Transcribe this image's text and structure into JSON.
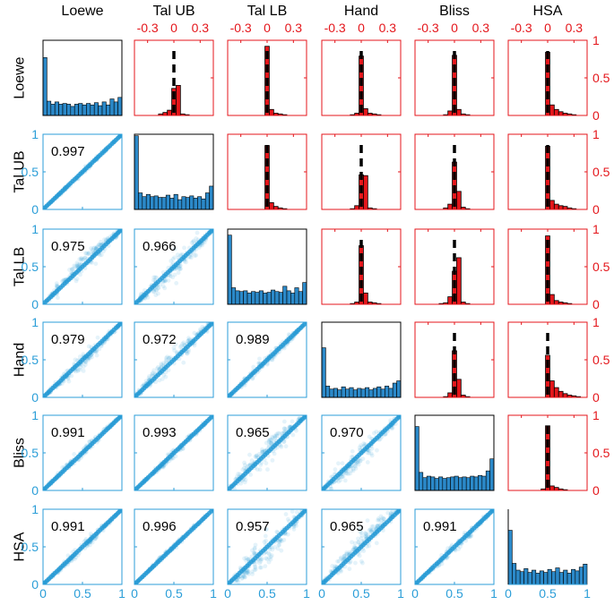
{
  "chart_data": {
    "type": "scatter-matrix",
    "methods": [
      "Loewe",
      "Tal UB",
      "Tal LB",
      "Hand",
      "Bliss",
      "HSA"
    ],
    "colors": {
      "scatter": "#2b9ed8",
      "hist": "#2b89c9",
      "diff": "#e4161b",
      "frame_lower": "#2b9ed8",
      "frame_upper": "#e4161b",
      "frame_diag": "#000000"
    },
    "lower_triangle": {
      "xlim": [
        0,
        1
      ],
      "ylim": [
        0,
        1
      ],
      "x_ticks": [
        0,
        0.5,
        1
      ],
      "x_tick_labels": [
        "0",
        "0.5",
        "1"
      ],
      "y_ticks": [
        0,
        0.5,
        1
      ],
      "y_tick_labels": [
        "0",
        "0.5",
        "1"
      ],
      "correlations": [
        {
          "row": 1,
          "col": 0,
          "value": "0.997"
        },
        {
          "row": 2,
          "col": 0,
          "value": "0.975"
        },
        {
          "row": 2,
          "col": 1,
          "value": "0.966"
        },
        {
          "row": 3,
          "col": 0,
          "value": "0.979"
        },
        {
          "row": 3,
          "col": 1,
          "value": "0.972"
        },
        {
          "row": 3,
          "col": 2,
          "value": "0.989"
        },
        {
          "row": 4,
          "col": 0,
          "value": "0.991"
        },
        {
          "row": 4,
          "col": 1,
          "value": "0.993"
        },
        {
          "row": 4,
          "col": 2,
          "value": "0.965"
        },
        {
          "row": 4,
          "col": 3,
          "value": "0.970"
        },
        {
          "row": 5,
          "col": 0,
          "value": "0.991"
        },
        {
          "row": 5,
          "col": 1,
          "value": "0.996"
        },
        {
          "row": 5,
          "col": 2,
          "value": "0.957"
        },
        {
          "row": 5,
          "col": 3,
          "value": "0.965"
        },
        {
          "row": 5,
          "col": 4,
          "value": "0.991"
        }
      ]
    },
    "upper_triangle": {
      "xlim": [
        -0.45,
        0.45
      ],
      "ylim": [
        0,
        1
      ],
      "x_ticks": [
        -0.3,
        0,
        0.3
      ],
      "x_tick_labels": [
        "-0.3",
        "0",
        "0.3"
      ],
      "y_ticks": [
        0,
        0.5,
        1
      ],
      "y_tick_labels": [
        "0",
        "0.5",
        "1"
      ],
      "bin_centers": [
        -0.35,
        -0.3,
        -0.25,
        -0.2,
        -0.15,
        -0.1,
        -0.05,
        0,
        0.05,
        0.1,
        0.15,
        0.2,
        0.25,
        0.3,
        0.35
      ],
      "histograms": [
        {
          "row": 0,
          "col": 1,
          "values": [
            0,
            0,
            0,
            0,
            0.02,
            0.04,
            0.07,
            0.36,
            0.4,
            0.02,
            0.01,
            0,
            0,
            0,
            0
          ]
        },
        {
          "row": 0,
          "col": 2,
          "values": [
            0,
            0,
            0,
            0,
            0,
            0,
            0,
            0.92,
            0.08,
            0.03,
            0.02,
            0.01,
            0,
            0,
            0
          ]
        },
        {
          "row": 0,
          "col": 3,
          "values": [
            0,
            0,
            0,
            0,
            0,
            0.01,
            0.03,
            0.79,
            0.09,
            0.03,
            0.02,
            0.01,
            0,
            0,
            0
          ]
        },
        {
          "row": 0,
          "col": 4,
          "values": [
            0,
            0,
            0,
            0,
            0,
            0.01,
            0.06,
            0.8,
            0.08,
            0.02,
            0.01,
            0,
            0,
            0,
            0
          ]
        },
        {
          "row": 0,
          "col": 5,
          "values": [
            0,
            0,
            0,
            0,
            0,
            0,
            0,
            0.84,
            0.14,
            0.08,
            0.05,
            0.03,
            0.02,
            0.01,
            0
          ]
        },
        {
          "row": 1,
          "col": 2,
          "values": [
            0,
            0,
            0,
            0,
            0,
            0,
            0,
            0.85,
            0.09,
            0.04,
            0.02,
            0.01,
            0,
            0,
            0
          ]
        },
        {
          "row": 1,
          "col": 3,
          "values": [
            0,
            0,
            0,
            0,
            0,
            0.01,
            0.05,
            0.46,
            0.45,
            0.02,
            0.01,
            0,
            0,
            0,
            0
          ]
        },
        {
          "row": 1,
          "col": 4,
          "values": [
            0,
            0,
            0,
            0,
            0,
            0.02,
            0.07,
            0.63,
            0.24,
            0.03,
            0.01,
            0,
            0,
            0,
            0
          ]
        },
        {
          "row": 1,
          "col": 5,
          "values": [
            0,
            0,
            0,
            0,
            0,
            0,
            0,
            0.84,
            0.12,
            0.07,
            0.05,
            0.04,
            0.02,
            0.01,
            0
          ]
        },
        {
          "row": 2,
          "col": 3,
          "values": [
            0,
            0,
            0,
            0,
            0,
            0.01,
            0.03,
            0.78,
            0.15,
            0.03,
            0.02,
            0.01,
            0,
            0,
            0
          ]
        },
        {
          "row": 2,
          "col": 4,
          "values": [
            0,
            0,
            0,
            0,
            0.01,
            0.02,
            0.1,
            0.44,
            0.62,
            0.03,
            0.01,
            0,
            0,
            0,
            0
          ]
        },
        {
          "row": 2,
          "col": 5,
          "values": [
            0,
            0,
            0,
            0,
            0,
            0,
            0,
            0.91,
            0.13,
            0.05,
            0.03,
            0.02,
            0.01,
            0,
            0
          ]
        },
        {
          "row": 3,
          "col": 4,
          "values": [
            0,
            0,
            0,
            0,
            0,
            0.01,
            0.06,
            0.62,
            0.24,
            0.03,
            0.01,
            0,
            0,
            0,
            0
          ]
        },
        {
          "row": 3,
          "col": 5,
          "values": [
            0,
            0,
            0,
            0,
            0,
            0,
            0,
            0.56,
            0.22,
            0.13,
            0.08,
            0.05,
            0.03,
            0.02,
            0.01
          ]
        },
        {
          "row": 4,
          "col": 5,
          "values": [
            0,
            0,
            0,
            0,
            0,
            0,
            0.02,
            0.86,
            0.06,
            0.04,
            0.02,
            0.01,
            0,
            0,
            0
          ]
        }
      ]
    },
    "diagonal": {
      "xlim": [
        0,
        1
      ],
      "histograms": [
        {
          "index": 0,
          "values": [
            0.77,
            0.19,
            0.15,
            0.18,
            0.15,
            0.16,
            0.15,
            0.12,
            0.15,
            0.16,
            0.14,
            0.16,
            0.14,
            0.17,
            0.13,
            0.18,
            0.14,
            0.22,
            0.18,
            0.24
          ]
        },
        {
          "index": 1,
          "values": [
            0.98,
            0.22,
            0.17,
            0.2,
            0.17,
            0.18,
            0.16,
            0.16,
            0.19,
            0.15,
            0.2,
            0.13,
            0.17,
            0.16,
            0.18,
            0.15,
            0.17,
            0.14,
            0.22,
            0.31
          ]
        },
        {
          "index": 2,
          "values": [
            0.92,
            0.22,
            0.18,
            0.17,
            0.18,
            0.15,
            0.17,
            0.16,
            0.18,
            0.15,
            0.16,
            0.19,
            0.17,
            0.16,
            0.24,
            0.18,
            0.15,
            0.22,
            0.17,
            0.29
          ]
        },
        {
          "index": 3,
          "values": [
            0.66,
            0.15,
            0.11,
            0.12,
            0.1,
            0.14,
            0.11,
            0.13,
            0.1,
            0.12,
            0.11,
            0.13,
            0.1,
            0.12,
            0.14,
            0.11,
            0.15,
            0.12,
            0.19,
            0.22
          ]
        },
        {
          "index": 4,
          "values": [
            0.85,
            0.24,
            0.17,
            0.19,
            0.18,
            0.16,
            0.18,
            0.16,
            0.17,
            0.18,
            0.19,
            0.17,
            0.18,
            0.17,
            0.19,
            0.18,
            0.2,
            0.19,
            0.26,
            0.42
          ]
        },
        {
          "index": 5,
          "values": [
            0.72,
            0.28,
            0.19,
            0.17,
            0.21,
            0.16,
            0.19,
            0.15,
            0.18,
            0.16,
            0.2,
            0.17,
            0.22,
            0.16,
            0.19,
            0.15,
            0.2,
            0.18,
            0.23,
            0.27
          ]
        }
      ]
    }
  }
}
